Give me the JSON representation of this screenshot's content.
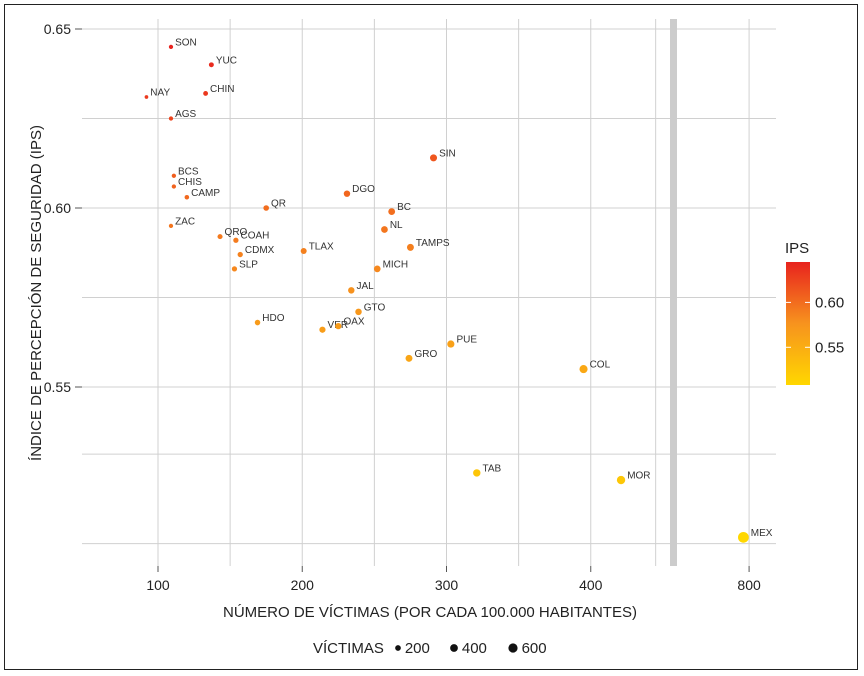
{
  "chart_data": {
    "type": "scatter",
    "xlabel": "NÚMERO DE VÍCTIMAS (POR CADA 100.000 HABITANTES)",
    "ylabel": "ÍNDICE DE PERCEPCIÓN DE SEGURIDAD (IPS)",
    "x_ticks": [
      100,
      200,
      300,
      400,
      800
    ],
    "y_ticks": [
      0.55,
      0.6,
      0.65
    ],
    "x_tick_labels": [
      "100",
      "200",
      "300",
      "400",
      "800"
    ],
    "y_tick_labels": [
      "0.55",
      "0.60",
      "0.65"
    ],
    "x_axis_break_between": [
      450,
      800
    ],
    "grid": true,
    "color_legend": {
      "title": "IPS",
      "ticks": [
        0.55,
        0.6
      ],
      "tick_labels": [
        "0.55",
        "0.60"
      ],
      "low_color": "#FFD700",
      "mid_color": "#F7931E",
      "high_color": "#E8231E"
    },
    "size_legend": {
      "title": "VÍCTIMAS",
      "values": [
        200,
        400,
        600
      ],
      "labels": [
        "200",
        "400",
        "600"
      ],
      "position": "bottom"
    },
    "points": [
      {
        "label": "SON",
        "x": 109,
        "y": 0.645
      },
      {
        "label": "YUC",
        "x": 137,
        "y": 0.64
      },
      {
        "label": "CHIN",
        "x": 133,
        "y": 0.632
      },
      {
        "label": "NAY",
        "x": 92,
        "y": 0.631
      },
      {
        "label": "AGS",
        "x": 109,
        "y": 0.625
      },
      {
        "label": "BCS",
        "x": 111,
        "y": 0.609
      },
      {
        "label": "CHIS",
        "x": 111,
        "y": 0.606
      },
      {
        "label": "CAMP",
        "x": 120,
        "y": 0.603
      },
      {
        "label": "ZAC",
        "x": 109,
        "y": 0.595
      },
      {
        "label": "QRO",
        "x": 143,
        "y": 0.592
      },
      {
        "label": "COAH",
        "x": 154,
        "y": 0.591
      },
      {
        "label": "CDMX",
        "x": 157,
        "y": 0.587
      },
      {
        "label": "SLP",
        "x": 153,
        "y": 0.583
      },
      {
        "label": "QR",
        "x": 175,
        "y": 0.6
      },
      {
        "label": "TLAX",
        "x": 201,
        "y": 0.588
      },
      {
        "label": "DGO",
        "x": 231,
        "y": 0.604
      },
      {
        "label": "BC",
        "x": 262,
        "y": 0.599
      },
      {
        "label": "NL",
        "x": 257,
        "y": 0.594
      },
      {
        "label": "SIN",
        "x": 291,
        "y": 0.614
      },
      {
        "label": "TAMPS",
        "x": 275,
        "y": 0.589
      },
      {
        "label": "MICH",
        "x": 252,
        "y": 0.583
      },
      {
        "label": "JAL",
        "x": 234,
        "y": 0.577
      },
      {
        "label": "GTO",
        "x": 239,
        "y": 0.571
      },
      {
        "label": "HDO",
        "x": 169,
        "y": 0.568
      },
      {
        "label": "VER",
        "x": 214,
        "y": 0.566
      },
      {
        "label": "OAX",
        "x": 225,
        "y": 0.567
      },
      {
        "label": "PUE",
        "x": 303,
        "y": 0.562
      },
      {
        "label": "GRO",
        "x": 274,
        "y": 0.558
      },
      {
        "label": "COL",
        "x": 395,
        "y": 0.555
      },
      {
        "label": "TAB",
        "x": 321,
        "y": 0.526
      },
      {
        "label": "MOR",
        "x": 421,
        "y": 0.524
      },
      {
        "label": "MEX",
        "x": 776,
        "y": 0.508
      }
    ]
  }
}
